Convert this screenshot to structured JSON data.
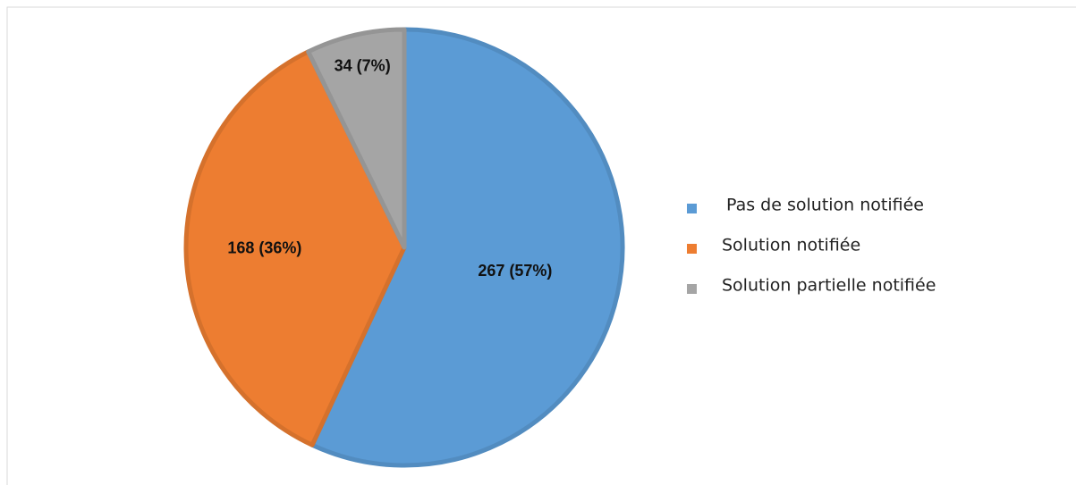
{
  "chart_data": {
    "type": "pie",
    "categories": [
      "Pas de solution notifiée",
      "Solution notifiée",
      "Solution partielle notifiée"
    ],
    "values": [
      267,
      168,
      34
    ],
    "value_labels": [
      "267 (57%)",
      "168 (36%)",
      "34 (7%)"
    ],
    "colors": [
      "#5b9bd5",
      "#ed7d31",
      "#a5a5a5"
    ],
    "legend": "right"
  }
}
